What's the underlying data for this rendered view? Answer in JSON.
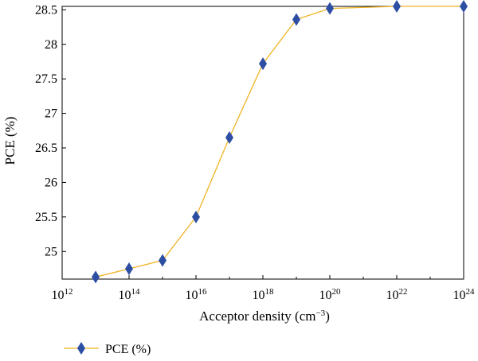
{
  "chart_data": {
    "type": "line",
    "xscale": "log",
    "x": [
      10000000000000.0,
      100000000000000.0,
      1000000000000000.0,
      1e+16,
      1e+17,
      1e+18,
      1e+19,
      1e+20,
      1e+22,
      1e+24
    ],
    "series": [
      {
        "name": "PCE (%)",
        "values": [
          24.63,
          24.75,
          24.87,
          25.5,
          26.65,
          27.72,
          28.36,
          28.52,
          28.55,
          28.55
        ],
        "color": "#f0b323",
        "marker": "diamond",
        "marker_color": "#2e4ea3"
      }
    ],
    "xlim": [
      1000000000000.0,
      1e+24
    ],
    "ylim": [
      24.6,
      28.55
    ],
    "xticks": [
      {
        "base": "10",
        "exp": "12",
        "value": 1000000000000.0
      },
      {
        "base": "10",
        "exp": "14",
        "value": 100000000000000.0
      },
      {
        "base": "10",
        "exp": "16",
        "value": 1e+16
      },
      {
        "base": "10",
        "exp": "18",
        "value": 1e+18
      },
      {
        "base": "10",
        "exp": "20",
        "value": 1e+20
      },
      {
        "base": "10",
        "exp": "22",
        "value": 1e+22
      },
      {
        "base": "10",
        "exp": "24",
        "value": 1e+24
      }
    ],
    "yticks": [
      {
        "label": "25",
        "value": 25
      },
      {
        "label": "25.5",
        "value": 25.5
      },
      {
        "label": "26",
        "value": 26
      },
      {
        "label": "26.5",
        "value": 26.5
      },
      {
        "label": "27",
        "value": 27
      },
      {
        "label": "27.5",
        "value": 27.5
      },
      {
        "label": "28",
        "value": 28
      },
      {
        "label": "28.5",
        "value": 28.5
      }
    ],
    "xlabel": {
      "main": "Acceptor density (cm",
      "sup": "−3",
      "close": ")"
    },
    "ylabel": "PCE (%)",
    "grid": false,
    "legend": {
      "position": "bottom-left",
      "entries": [
        "PCE (%)"
      ]
    }
  }
}
